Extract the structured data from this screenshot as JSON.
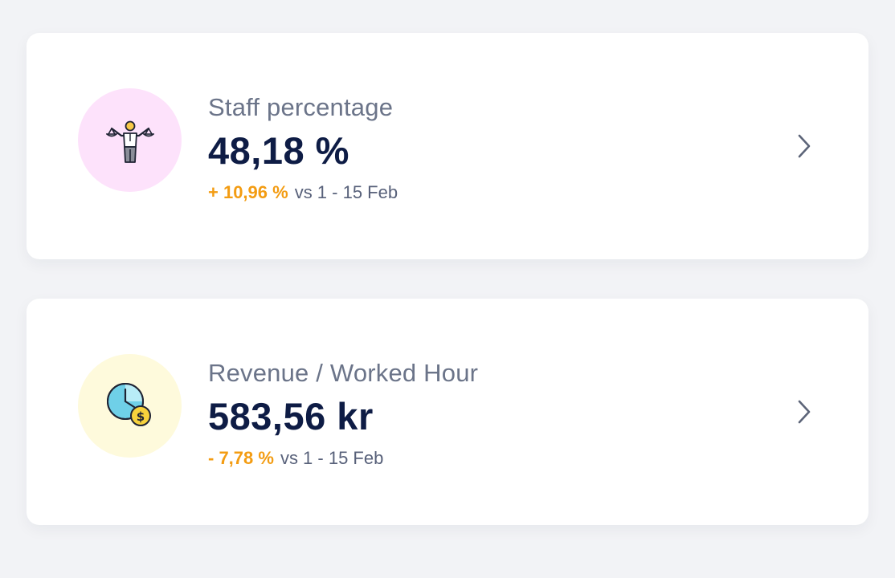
{
  "cards": [
    {
      "icon": "balancing-person-icon",
      "icon_bg": "#fde2fb",
      "title": "Staff percentage",
      "value": "48,18 %",
      "delta": "+ 10,96 %",
      "delta_color": "#f39c12",
      "period": "vs 1 - 15 Feb"
    },
    {
      "icon": "clock-coin-icon",
      "icon_bg": "#fefadc",
      "title": "Revenue / Worked Hour",
      "value": "583,56 kr",
      "delta": "- 7,78 %",
      "delta_color": "#f39c12",
      "period": "vs 1 - 15 Feb"
    }
  ],
  "colors": {
    "background": "#f2f3f6",
    "card": "#ffffff",
    "title": "#6b7489",
    "value": "#0e1c45",
    "chevron": "#5c6478"
  }
}
